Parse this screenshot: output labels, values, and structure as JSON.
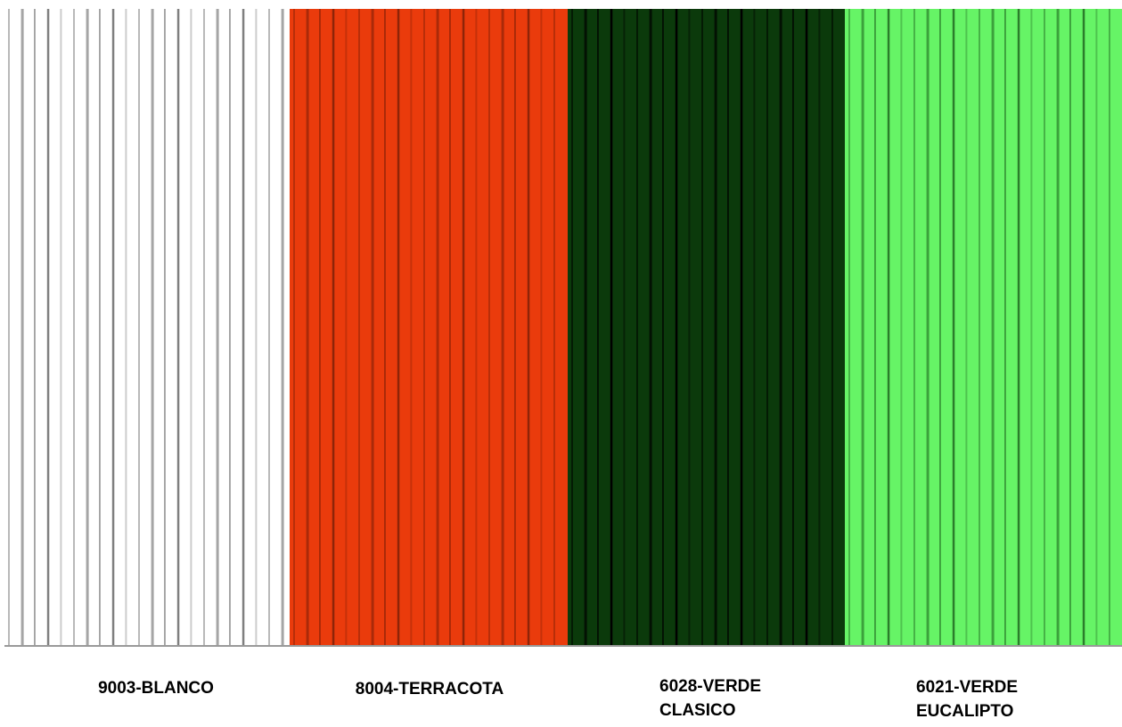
{
  "swatches": [
    {
      "label": "9003-BLANCO",
      "color": "#ffffff",
      "stripe": "#7f7f7f"
    },
    {
      "label": "8004-TERRACOTA",
      "color": "#ea3b0c",
      "stripe": "#8e2408"
    },
    {
      "label": "6028-VERDE CLASICO",
      "color": "#0b3a0b",
      "stripe": "#000000"
    },
    {
      "label": "6021-VERDE EUCALIPTO",
      "color": "#66f466",
      "stripe": "#2b7d2b"
    }
  ]
}
